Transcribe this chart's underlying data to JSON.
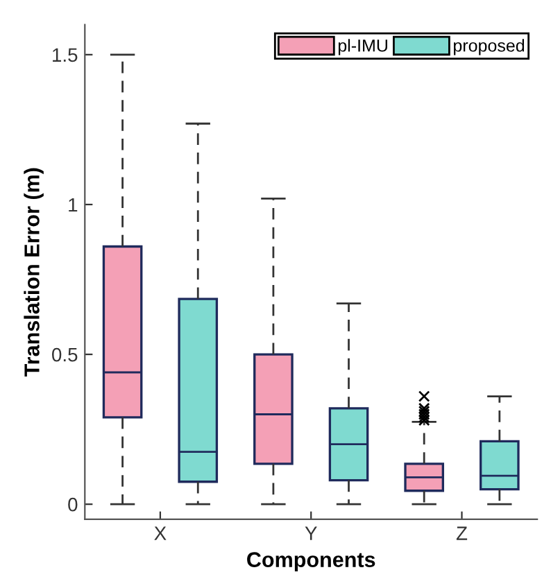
{
  "chart_data": {
    "type": "box",
    "xlabel": "Components",
    "ylabel": "Translation Error (m)",
    "categories": [
      "X",
      "Y",
      "Z"
    ],
    "series": [
      {
        "name": "pl-IMU",
        "color": "#f4a0b6",
        "boxes": [
          {
            "low": 0,
            "q1": 0.29,
            "median": 0.44,
            "q3": 0.86,
            "high": 1.5
          },
          {
            "low": 0,
            "q1": 0.135,
            "median": 0.3,
            "q3": 0.5,
            "high": 1.02
          },
          {
            "low": 0,
            "q1": 0.045,
            "median": 0.09,
            "q3": 0.135,
            "high": 0.275,
            "outliers": [
              0.28,
              0.29,
              0.3,
              0.31,
              0.32,
              0.36
            ]
          }
        ]
      },
      {
        "name": "proposed",
        "color": "#7fdad0",
        "boxes": [
          {
            "low": 0,
            "q1": 0.075,
            "median": 0.175,
            "q3": 0.685,
            "high": 1.27
          },
          {
            "low": 0,
            "q1": 0.08,
            "median": 0.2,
            "q3": 0.32,
            "high": 0.67
          },
          {
            "low": 0,
            "q1": 0.05,
            "median": 0.095,
            "q3": 0.21,
            "high": 0.36
          }
        ]
      }
    ],
    "ylim": [
      -0.05,
      1.6
    ],
    "yticks": [
      0,
      0.5,
      1,
      1.5
    ],
    "legend": "top right",
    "grid": false,
    "marker": "cross"
  }
}
